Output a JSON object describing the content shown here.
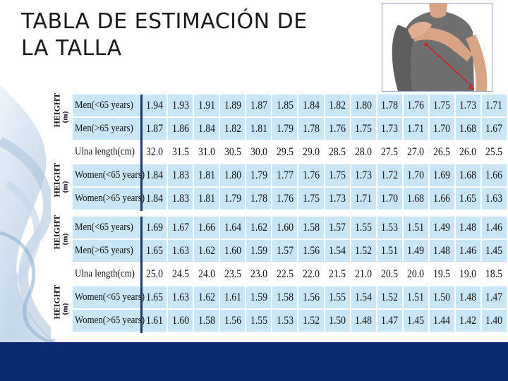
{
  "slide": {
    "title_line1": "TABLA DE ESTIMACIÓN DE",
    "title_line2": "LA TALLA"
  },
  "table": {
    "height_axis_label": "HEIGHT",
    "height_axis_unit": "(m)",
    "block1": {
      "rows": [
        {
          "label": "Men(<65 years)",
          "kind": "height",
          "values": [
            "1.94",
            "1.93",
            "1.91",
            "1.89",
            "1.87",
            "1.85",
            "1.84",
            "1.82",
            "1.80",
            "1.78",
            "1.76",
            "1.75",
            "1.73",
            "1.71"
          ]
        },
        {
          "label": "Men(>65 years)",
          "kind": "height",
          "values": [
            "1.87",
            "1.86",
            "1.84",
            "1.82",
            "1.81",
            "1.79",
            "1.78",
            "1.76",
            "1.75",
            "1.73",
            "1.71",
            "1.70",
            "1.68",
            "1.67"
          ]
        },
        {
          "label": "Ulna length(cm)",
          "kind": "ulna",
          "values": [
            "32.0",
            "31.5",
            "31.0",
            "30.5",
            "30.0",
            "29.5",
            "29.0",
            "28.5",
            "28.0",
            "27.5",
            "27.0",
            "26.5",
            "26.0",
            "25.5"
          ]
        },
        {
          "label": "Women(<65 years)",
          "kind": "height",
          "values": [
            "1.84",
            "1.83",
            "1.81",
            "1.80",
            "1.79",
            "1.77",
            "1.76",
            "1.75",
            "1.73",
            "1.72",
            "1.70",
            "1.69",
            "1.68",
            "1.66"
          ]
        },
        {
          "label": "Women(>65 years)",
          "kind": "height",
          "values": [
            "1.84",
            "1.83",
            "1.81",
            "1.79",
            "1.78",
            "1.76",
            "1.75",
            "1.73",
            "1.71",
            "1.70",
            "1.68",
            "1.66",
            "1.65",
            "1.63"
          ]
        }
      ]
    },
    "block2": {
      "rows": [
        {
          "label": "Men(<65 years)",
          "kind": "height",
          "values": [
            "1.69",
            "1.67",
            "1.66",
            "1.64",
            "1.62",
            "1.60",
            "1.58",
            "1.57",
            "1.55",
            "1.53",
            "1.51",
            "1.49",
            "1.48",
            "1.46"
          ]
        },
        {
          "label": "Men(>65 years)",
          "kind": "height",
          "values": [
            "1.65",
            "1.63",
            "1.62",
            "1.60",
            "1.59",
            "1.57",
            "1.56",
            "1.54",
            "1.52",
            "1.51",
            "1.49",
            "1.48",
            "1.46",
            "1.45"
          ]
        },
        {
          "label": "Ulna length(cm)",
          "kind": "ulna",
          "values": [
            "25.0",
            "24.5",
            "24.0",
            "23.5",
            "23.0",
            "22.5",
            "22.0",
            "21.5",
            "21.0",
            "20.5",
            "20.0",
            "19.5",
            "19.0",
            "18.5"
          ]
        },
        {
          "label": "Women(<65 years)",
          "kind": "height",
          "values": [
            "1.65",
            "1.63",
            "1.62",
            "1.61",
            "1.59",
            "1.58",
            "1.56",
            "1.55",
            "1.54",
            "1.52",
            "1.51",
            "1.50",
            "1.48",
            "1.47"
          ]
        },
        {
          "label": "Women(>65 years)",
          "kind": "height",
          "values": [
            "1.61",
            "1.60",
            "1.58",
            "1.56",
            "1.55",
            "1.53",
            "1.52",
            "1.50",
            "1.48",
            "1.47",
            "1.45",
            "1.44",
            "1.42",
            "1.40"
          ]
        }
      ]
    }
  },
  "colors": {
    "height_row_bg": "#c9e6f6",
    "bottom_bar": "#0c2a72",
    "label_divider": "#1a3a6a",
    "shirt": "#6f6f6f",
    "skin": "#d9a486",
    "measure_line": "#cc2222"
  },
  "icons": {
    "photo": "ulna-measurement-photo"
  }
}
